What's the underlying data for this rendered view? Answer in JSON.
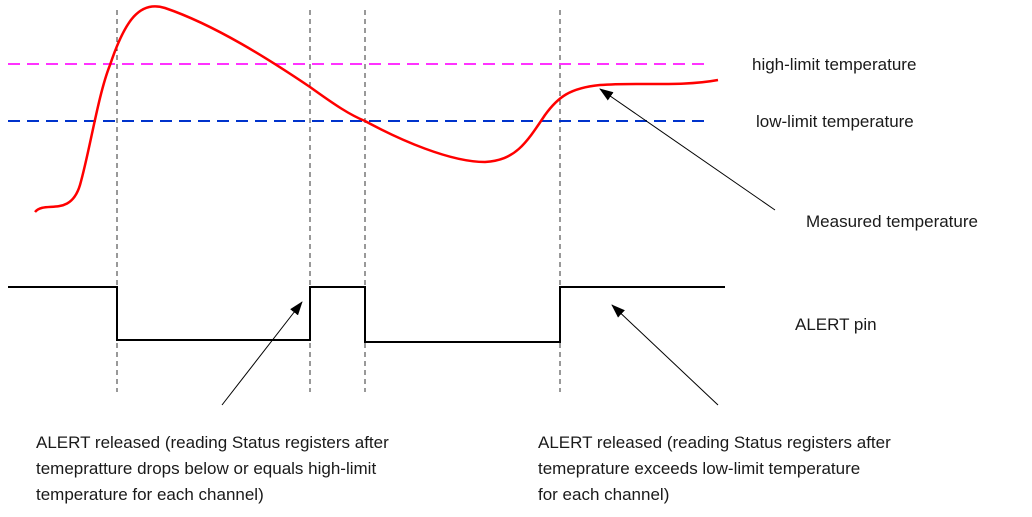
{
  "labels": {
    "high_limit": "high-limit temperature",
    "low_limit": "low-limit temperature",
    "measured": "Measured temperature",
    "alert_pin": "ALERT pin"
  },
  "captions": {
    "left": [
      "ALERT released (reading Status registers after",
      "temepratture drops below or equals high-limit",
      "temperature for each channel)"
    ],
    "right": [
      "ALERT released (reading Status registers after",
      "temeprature  exceeds low-limit temperature",
      "for each channel)"
    ]
  },
  "colors": {
    "high_limit_line": "#ff33ff",
    "low_limit_line": "#0033cc",
    "measured_curve": "#ff0000",
    "alert_signal": "#000000",
    "guide_lines": "#333333"
  }
}
